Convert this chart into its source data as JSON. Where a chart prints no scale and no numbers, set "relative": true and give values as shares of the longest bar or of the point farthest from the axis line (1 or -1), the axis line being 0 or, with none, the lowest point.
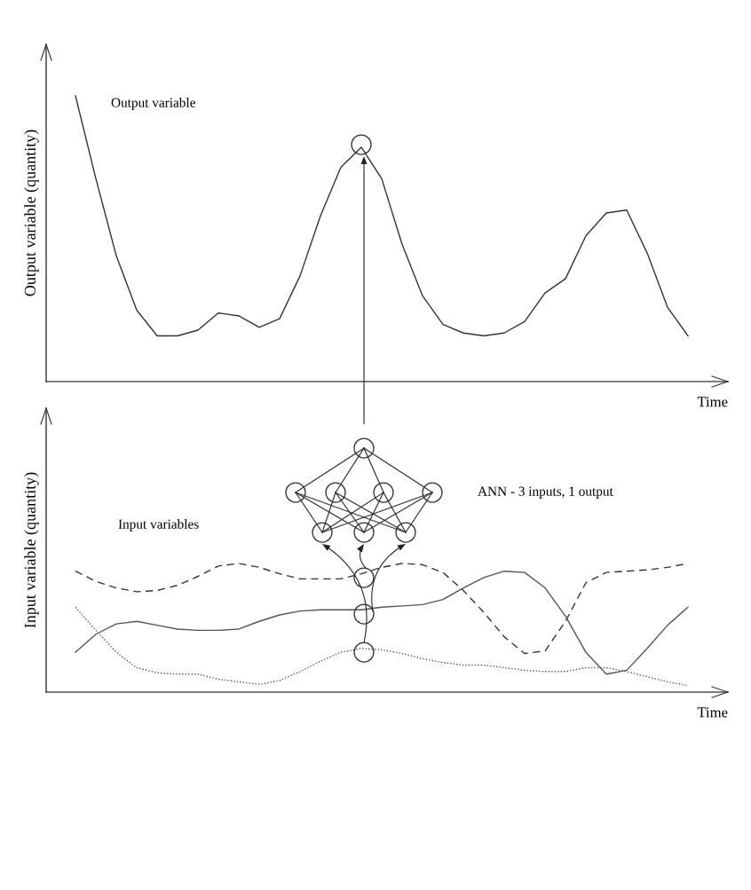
{
  "chart_data": [
    {
      "type": "line",
      "relative": true,
      "ylabel": "Output variable (quantity)",
      "xlabel": "Time",
      "tick_labels": false,
      "marker": "none",
      "line_style": "solid",
      "annotations": [
        "Output variable"
      ],
      "categories": [
        null,
        null,
        null,
        null,
        null,
        null,
        null,
        null,
        null,
        null,
        null,
        null,
        null,
        null,
        null,
        null,
        null,
        null,
        null,
        null,
        null,
        null,
        null,
        null,
        null,
        null,
        null,
        null,
        null,
        null,
        null
      ],
      "color": "#333333",
      "values": [
        1.0,
        0.71,
        0.44,
        0.25,
        0.16,
        0.16,
        0.18,
        0.24,
        0.23,
        0.19,
        0.22,
        0.37,
        0.58,
        0.75,
        0.82,
        0.71,
        0.48,
        0.3,
        0.2,
        0.17,
        0.16,
        0.17,
        0.21,
        0.31,
        0.36,
        0.51,
        0.59,
        0.6,
        0.45,
        0.26,
        0.16
      ]
    },
    {
      "type": "line",
      "relative": true,
      "ylabel": "Input variable (quantity)",
      "xlabel": "Time",
      "tick_labels": false,
      "marker": "none",
      "annotations": [
        "Input variables",
        "ANN - 3 inputs, 1 output"
      ],
      "categories": [
        null,
        null,
        null,
        null,
        null,
        null,
        null,
        null,
        null,
        null,
        null,
        null,
        null,
        null,
        null,
        null,
        null,
        null,
        null,
        null,
        null,
        null,
        null,
        null,
        null,
        null,
        null,
        null,
        null,
        null,
        null
      ],
      "series": [
        {
          "color": "#333333",
          "line_style": "dashed",
          "values": [
            0.94,
            0.86,
            0.81,
            0.78,
            0.79,
            0.83,
            0.9,
            0.98,
            1.0,
            0.97,
            0.92,
            0.88,
            0.88,
            0.88,
            0.92,
            0.97,
            1.0,
            0.99,
            0.93,
            0.79,
            0.62,
            0.43,
            0.3,
            0.32,
            0.55,
            0.85,
            0.93,
            0.94,
            0.95,
            0.97,
            1.0
          ]
        },
        {
          "color": "#555555",
          "line_style": "solid",
          "values": [
            0.31,
            0.45,
            0.53,
            0.55,
            0.52,
            0.49,
            0.48,
            0.48,
            0.49,
            0.55,
            0.6,
            0.63,
            0.64,
            0.64,
            0.64,
            0.66,
            0.67,
            0.68,
            0.72,
            0.81,
            0.89,
            0.94,
            0.93,
            0.81,
            0.59,
            0.31,
            0.14,
            0.17,
            0.34,
            0.52,
            0.66
          ]
        },
        {
          "color": "#555555",
          "line_style": "dotted",
          "values": [
            0.66,
            0.48,
            0.31,
            0.19,
            0.15,
            0.14,
            0.14,
            0.1,
            0.08,
            0.06,
            0.09,
            0.16,
            0.24,
            0.31,
            0.34,
            0.33,
            0.3,
            0.26,
            0.23,
            0.21,
            0.21,
            0.19,
            0.17,
            0.16,
            0.16,
            0.19,
            0.19,
            0.16,
            0.12,
            0.08,
            0.05
          ]
        }
      ]
    }
  ]
}
